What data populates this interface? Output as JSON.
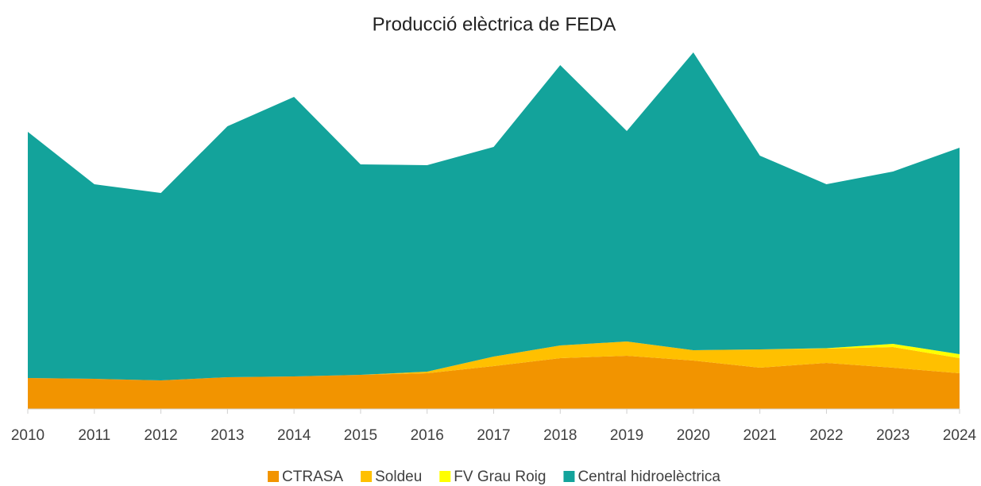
{
  "chart_data": {
    "type": "stacked_area",
    "title": "Producció elèctrica de FEDA",
    "categories": [
      "2010",
      "2011",
      "2012",
      "2013",
      "2014",
      "2015",
      "2016",
      "2017",
      "2018",
      "2019",
      "2020",
      "2021",
      "2022",
      "2023",
      "2024"
    ],
    "series": [
      {
        "name": "CTRASA",
        "color": "#f29400",
        "values": [
          39,
          38,
          36,
          40,
          41,
          43,
          45,
          54,
          64,
          67,
          61,
          52,
          58,
          52,
          45
        ]
      },
      {
        "name": "Soldeu",
        "color": "#ffc000",
        "values": [
          0,
          0,
          0,
          0,
          0,
          0,
          2,
          12,
          16,
          18,
          13,
          23,
          18,
          26,
          19
        ]
      },
      {
        "name": "FV Grau Roig",
        "color": "#ffff00",
        "values": [
          0,
          0,
          0,
          0,
          0,
          0,
          0,
          0,
          0,
          0,
          0,
          0,
          0.5,
          4,
          5
        ]
      },
      {
        "name": "Central hidroelèctrica",
        "color": "#13a39b",
        "values": [
          310,
          245,
          236,
          316,
          352,
          265,
          260,
          264,
          353,
          265,
          375,
          244,
          206.5,
          217,
          260
        ]
      }
    ],
    "ylim": [
      0,
      450
    ],
    "legend": "bottom"
  }
}
